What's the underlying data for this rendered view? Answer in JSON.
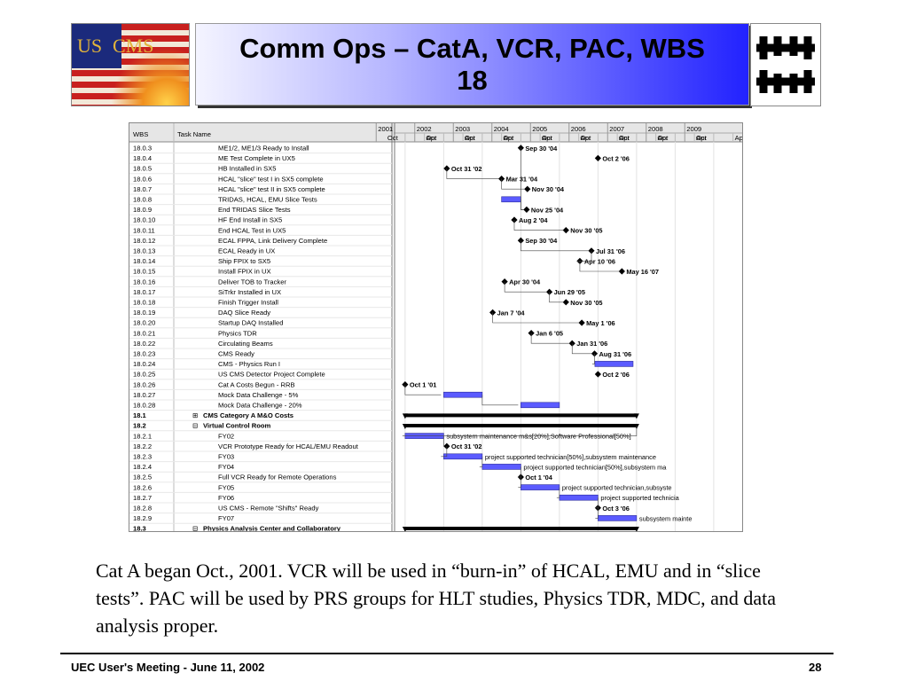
{
  "logo_us": {
    "left_text": "US",
    "right_text": "CMS"
  },
  "title": "Comm Ops – CatA, VCR, PAC, WBS 18",
  "gantt": {
    "col_wbs": "WBS",
    "col_task": "Task Name",
    "years": [
      "2001",
      "2002",
      "2003",
      "2004",
      "2005",
      "2006",
      "2007",
      "2008",
      "2009"
    ],
    "months": [
      "Oct",
      "Apr",
      "Oct",
      "Apr",
      "Oct",
      "Apr",
      "Oct",
      "Apr",
      "Oct",
      "Apr",
      "Oct",
      "Apr",
      "Oct",
      "Apr",
      "Oct",
      "Apr",
      "Oct",
      "Apr"
    ],
    "rows": [
      {
        "wbs": "18.0.3",
        "task": "ME1/2, ME1/3 Ready to Install",
        "label": "Sep 30 '04",
        "kind": "milestone",
        "t": 2004.75
      },
      {
        "wbs": "18.0.4",
        "task": "ME Test Complete in UX5",
        "label": "Oct 2 '06",
        "kind": "milestone",
        "t": 2006.75
      },
      {
        "wbs": "18.0.5",
        "task": "HB Installed in SX5",
        "label": "Oct 31 '02",
        "kind": "milestone",
        "t": 2002.83
      },
      {
        "wbs": "18.0.6",
        "task": "HCAL \"slice\" test I in SX5 complete",
        "label": "Mar 31 '04",
        "kind": "milestone",
        "t": 2004.25
      },
      {
        "wbs": "18.0.7",
        "task": "HCAL \"slice\" test II in SX5 complete",
        "label": "Nov 30 '04",
        "kind": "milestone",
        "t": 2004.92
      },
      {
        "wbs": "18.0.8",
        "task": "TRIDAS, HCAL, EMU Slice Tests",
        "label": "",
        "kind": "bar",
        "t": 2004.25,
        "end": 2004.75
      },
      {
        "wbs": "18.0.9",
        "task": "End TRIDAS Slice Tests",
        "label": "Nov 25 '04",
        "kind": "milestone",
        "t": 2004.9
      },
      {
        "wbs": "18.0.10",
        "task": "HF End Install in SX5",
        "label": "Aug 2 '04",
        "kind": "milestone",
        "t": 2004.58
      },
      {
        "wbs": "18.0.11",
        "task": "End HCAL Test in UX5",
        "label": "Nov 30 '05",
        "kind": "milestone",
        "t": 2005.92
      },
      {
        "wbs": "18.0.12",
        "task": "ECAL FPPA, Link  Delivery Complete",
        "label": "Sep 30 '04",
        "kind": "milestone",
        "t": 2004.75
      },
      {
        "wbs": "18.0.13",
        "task": "ECAL Ready in UX",
        "label": "Jul 31 '06",
        "kind": "milestone",
        "t": 2006.58
      },
      {
        "wbs": "18.0.14",
        "task": "Ship FPIX to SX5",
        "label": "Apr 10 '06",
        "kind": "milestone",
        "t": 2006.28
      },
      {
        "wbs": "18.0.15",
        "task": "Install FPIX in UX",
        "label": "May 16 '07",
        "kind": "milestone",
        "t": 2007.37
      },
      {
        "wbs": "18.0.16",
        "task": "Deliver TOB to Tracker",
        "label": "Apr 30 '04",
        "kind": "milestone",
        "t": 2004.33
      },
      {
        "wbs": "18.0.17",
        "task": "SiTrkr Installed in UX",
        "label": "Jun 29 '05",
        "kind": "milestone",
        "t": 2005.49
      },
      {
        "wbs": "18.0.18",
        "task": "Finish Trigger Install",
        "label": "Nov 30 '05",
        "kind": "milestone",
        "t": 2005.92
      },
      {
        "wbs": "18.0.19",
        "task": "DAQ Slice Ready",
        "label": "Jan 7 '04",
        "kind": "milestone",
        "t": 2004.02
      },
      {
        "wbs": "18.0.20",
        "task": "Startup DAQ Installed",
        "label": "May 1 '06",
        "kind": "milestone",
        "t": 2006.33
      },
      {
        "wbs": "18.0.21",
        "task": "Physics TDR",
        "label": "Jan 6 '05",
        "kind": "milestone",
        "t": 2005.02
      },
      {
        "wbs": "18.0.22",
        "task": "Circulating Beams",
        "label": "Jan 31 '06",
        "kind": "milestone",
        "t": 2006.08
      },
      {
        "wbs": "18.0.23",
        "task": "CMS Ready",
        "label": "Aug 31 '06",
        "kind": "milestone",
        "t": 2006.66
      },
      {
        "wbs": "18.0.24",
        "task": "CMS - Physics Run I",
        "label": "",
        "kind": "bar",
        "t": 2006.67,
        "end": 2007.66
      },
      {
        "wbs": "18.0.25",
        "task": "US CMS Detector Project Complete",
        "label": "Oct 2 '06",
        "kind": "milestone",
        "t": 2006.75
      },
      {
        "wbs": "18.0.26",
        "task": "Cat A Costs Begun - RRB",
        "label": "Oct 1 '01",
        "kind": "milestone",
        "t": 2001.75
      },
      {
        "wbs": "18.0.27",
        "task": "Mock Data Challenge - 5%",
        "label": "",
        "kind": "bar",
        "t": 2002.75,
        "end": 2003.75
      },
      {
        "wbs": "18.0.28",
        "task": "Mock Data Challenge - 20%",
        "label": "",
        "kind": "bar",
        "t": 2004.75,
        "end": 2005.75
      },
      {
        "wbs": "18.1",
        "task": "CMS Category A M&O Costs",
        "label": "",
        "kind": "summary",
        "t": 2001.75,
        "end": 2007.75,
        "bold": true,
        "outline": "⊞"
      },
      {
        "wbs": "18.2",
        "task": "Virtual Control Room",
        "label": "",
        "kind": "summary",
        "t": 2001.75,
        "end": 2007.75,
        "bold": true,
        "outline": "⊟"
      },
      {
        "wbs": "18.2.1",
        "task": "FY02",
        "label": "subsystem maintenance m&s[20%],Software Professional[50%]",
        "kind": "bar",
        "t": 2001.75,
        "end": 2002.75
      },
      {
        "wbs": "18.2.2",
        "task": "VCR Prototype Ready  for HCAL/EMU Readout",
        "label": "Oct 31 '02",
        "kind": "milestone",
        "t": 2002.83
      },
      {
        "wbs": "18.2.3",
        "task": "FY03",
        "label": "project supported technician[50%],subsystem maintenance",
        "kind": "bar",
        "t": 2002.75,
        "end": 2003.75
      },
      {
        "wbs": "18.2.4",
        "task": "FY04",
        "label": "project supported technician[50%],subsystem ma",
        "kind": "bar",
        "t": 2003.75,
        "end": 2004.75
      },
      {
        "wbs": "18.2.5",
        "task": "Full VCR Ready for Remote Operations",
        "label": "Oct 1 '04",
        "kind": "milestone",
        "t": 2004.75
      },
      {
        "wbs": "18.2.6",
        "task": "FY05",
        "label": "project supported technician,subsyste",
        "kind": "bar",
        "t": 2004.75,
        "end": 2005.75
      },
      {
        "wbs": "18.2.7",
        "task": "FY06",
        "label": "project supported technicia",
        "kind": "bar",
        "t": 2005.75,
        "end": 2006.75
      },
      {
        "wbs": "18.2.8",
        "task": "US CMS - Remote \"Shifts\" Ready",
        "label": "Oct 3 '06",
        "kind": "milestone",
        "t": 2006.75
      },
      {
        "wbs": "18.2.9",
        "task": "FY07",
        "label": "subsystem mainte",
        "kind": "bar",
        "t": 2006.75,
        "end": 2007.75
      },
      {
        "wbs": "18.3",
        "task": "Physics Analysis Center and Collaboratory",
        "label": "",
        "kind": "summary",
        "t": 2001.75,
        "end": 2007.75,
        "bold": true,
        "outline": "⊟"
      }
    ]
  },
  "caption": "Cat A began Oct., 2001. VCR will be used in “burn-in” of HCAL, EMU and in “slice tests”. PAC will be used by PRS groups for HLT studies, Physics TDR, MDC, and data analysis proper.",
  "footer": "UEC User's Meeting - June 11, 2002",
  "page_number": "28",
  "colors": {
    "bar": "#5b5bff",
    "milestone": "#000000",
    "title_gradient_end": "#2222ff"
  }
}
